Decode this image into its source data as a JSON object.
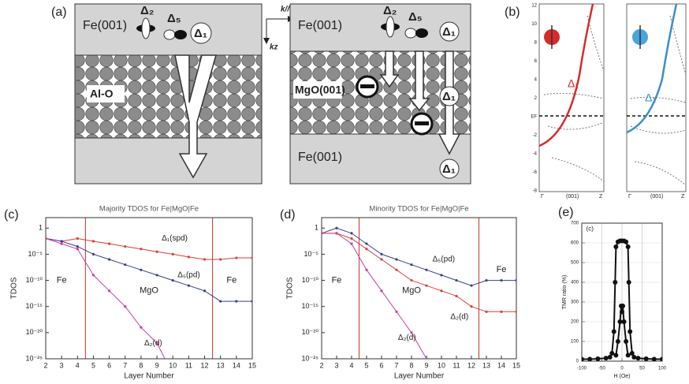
{
  "panel_labels": [
    "(a)",
    "(b)",
    "(c)",
    "(d)",
    "(e)"
  ],
  "diagram_a": {
    "axes": [
      "k//",
      "kz"
    ],
    "left": {
      "top_metal": "Fe(001)",
      "barrier": "Al-O",
      "orbitals": [
        "Δ₂",
        "Δ₅",
        "Δ₁"
      ]
    },
    "right": {
      "top_metal": "Fe(001)",
      "barrier": "MgO(001)",
      "orbitals": [
        "Δ₂",
        "Δ₅",
        "Δ₁"
      ],
      "mid": "Δ₁",
      "bottom_metal": "Fe(001)",
      "bottom": "Δ₁"
    }
  },
  "diagram_b": {
    "curve_labels": [
      "Δ₁",
      "Δ₁"
    ],
    "x_labels": [
      "Γ",
      "(001)",
      "Z"
    ],
    "y_labels": [
      "12",
      "10",
      "8",
      "6",
      "4",
      "2",
      "EF",
      "-2",
      "-4",
      "-6",
      "-8"
    ]
  },
  "chart_data": [
    {
      "type": "line",
      "title": "Majority TDOS for Fe|MgO|Fe",
      "x_label": "Layer Number",
      "y_label": "TDOS",
      "log_y": true,
      "x": [
        2,
        3,
        4,
        5,
        6,
        7,
        8,
        9,
        10,
        11,
        12,
        13,
        14,
        15
      ],
      "xlim": [
        2,
        15
      ],
      "xticks": [
        2,
        3,
        4,
        5,
        6,
        7,
        8,
        9,
        10,
        11,
        12,
        13,
        14,
        15
      ],
      "ylim": [
        1e-25,
        100
      ],
      "yticks": [
        1,
        {
          "value": 1e-05,
          "label": "10⁻⁵"
        },
        {
          "value": 1e-10,
          "label": "10⁻¹⁰"
        },
        {
          "value": 1e-15,
          "label": "10⁻¹⁵"
        },
        {
          "value": 1e-20,
          "label": "10⁻²⁰"
        },
        {
          "value": 1e-25,
          "label": "10⁻²⁵"
        }
      ],
      "vlines": [
        4.5,
        12.5
      ],
      "vline_color": "#c0392b",
      "annotations": [
        "Fe",
        "MgO",
        "Fe"
      ],
      "series": [
        {
          "name": "Δ₁(spd)",
          "color": "#d9403a",
          "values": [
            0.01,
            0.003,
            0.01,
            0.003,
            0.001,
            0.0003,
            0.0001,
            3e-05,
            1e-05,
            3e-06,
            1e-06,
            1e-06,
            2e-06,
            2e-06
          ]
        },
        {
          "name": "Δ₅(pd)",
          "color": "#3a3f8f",
          "values": [
            0.01,
            0.003,
            0.0003,
            1e-05,
            1e-06,
            1e-07,
            1e-08,
            1e-09,
            1e-10,
            1e-11,
            1e-12,
            1e-14,
            1e-14,
            1e-14
          ]
        },
        {
          "name": "Δ₂(d)",
          "color": "#c8409a",
          "values": [
            0.01,
            0.001,
            0.0001,
            1e-09,
            1e-12,
            1e-15,
            1e-19,
            1e-22,
            1e-28,
            null,
            null,
            null,
            null,
            null
          ]
        }
      ]
    },
    {
      "type": "line",
      "title": "Minority TDOS for Fe|MgO|Fe",
      "x_label": "Layer Number",
      "y_label": "TDOS",
      "log_y": true,
      "x": [
        2,
        3,
        4,
        5,
        6,
        7,
        8,
        9,
        10,
        11,
        12,
        13,
        14,
        15
      ],
      "xlim": [
        2,
        15
      ],
      "xticks": [
        2,
        3,
        4,
        5,
        6,
        7,
        8,
        9,
        10,
        11,
        12,
        13,
        14,
        15
      ],
      "ylim": [
        1e-25,
        100
      ],
      "yticks": [
        1,
        {
          "value": 1e-05,
          "label": "10⁻⁵"
        },
        {
          "value": 1e-10,
          "label": "10⁻¹⁰"
        },
        {
          "value": 1e-15,
          "label": "10⁻¹⁵"
        },
        {
          "value": 1e-20,
          "label": "10⁻²⁰"
        },
        {
          "value": 1e-25,
          "label": "10⁻²⁵"
        }
      ],
      "vlines": [
        4.5,
        12.5
      ],
      "vline_color": "#c0392b",
      "annotations": [
        "Fe",
        "MgO",
        "Fe"
      ],
      "series": [
        {
          "name": "Δ₅(pd)",
          "color": "#3a3f8f",
          "values": [
            0.1,
            1,
            0.1,
            0.001,
            1e-05,
            1e-06,
            1e-07,
            1e-08,
            1e-09,
            1e-10,
            1e-11,
            1e-10,
            1e-10,
            1e-10
          ]
        },
        {
          "name": "Δ₂(d)",
          "color": "#d9403a",
          "values": [
            0.1,
            0.1,
            0.01,
            0.0001,
            1e-06,
            1e-08,
            1e-10,
            1e-11,
            1e-12,
            1e-13,
            1e-15,
            1e-16,
            1e-16,
            1e-16
          ]
        },
        {
          "name": "Δ₂(d)",
          "color": "#c8409a",
          "values": [
            0.1,
            0.1,
            0.001,
            1e-08,
            1e-12,
            1e-16,
            1e-20,
            1e-25,
            null,
            null,
            null,
            null,
            null,
            null
          ]
        }
      ]
    },
    {
      "type": "line",
      "x_label": "H (Oe)",
      "y_label": "TMR ratio (%)",
      "log_y": false,
      "grid": true,
      "xlim": [
        -100,
        100
      ],
      "xticks": [
        -100,
        -50,
        0,
        50,
        100
      ],
      "ylim": [
        0,
        700
      ],
      "yticks": [
        0,
        100,
        200,
        300,
        400,
        500,
        600,
        700
      ],
      "annotations": [
        "(c)"
      ],
      "series": [
        {
          "color": "#111111",
          "x": [
            -100,
            -80,
            -60,
            -40,
            -30,
            -25,
            -20,
            -17,
            -15,
            -10,
            -5,
            0,
            5,
            10,
            15,
            17,
            20,
            25,
            30,
            40,
            60,
            80,
            100
          ],
          "values": [
            10,
            10,
            12,
            15,
            20,
            40,
            150,
            400,
            580,
            605,
            610,
            610,
            610,
            605,
            580,
            400,
            150,
            40,
            20,
            15,
            12,
            10,
            10
          ]
        },
        {
          "color": "#111111",
          "x": [
            -15,
            -10,
            -5,
            -2,
            0,
            2,
            5,
            10,
            15
          ],
          "values": [
            30,
            100,
            200,
            280,
            250,
            280,
            200,
            100,
            30
          ]
        }
      ]
    }
  ]
}
